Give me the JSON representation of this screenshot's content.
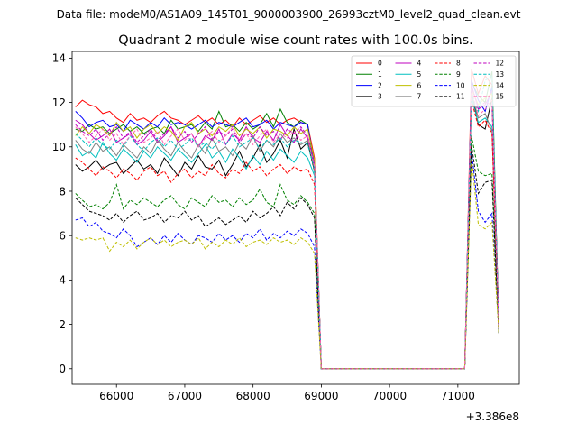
{
  "chart_data": {
    "type": "line",
    "suptitle": "Data file: modeM0/AS1A09_145T01_9000003900_26993cztM0_level2_quad_clean.evt",
    "title": "Quadrant 2 module wise count rates with 100.0s bins.",
    "xlabel": "",
    "ylabel": "",
    "x_offset_label": "+3.386e8",
    "xlim": [
      65350,
      71900
    ],
    "ylim": [
      -0.7,
      14.3
    ],
    "x_ticks": [
      66000,
      67000,
      68000,
      69000,
      70000,
      71000
    ],
    "x_tick_labels": [
      "66000",
      "67000",
      "68000",
      "69000",
      "70000",
      "71000"
    ],
    "y_ticks": [
      0,
      2,
      4,
      6,
      8,
      10,
      12,
      14
    ],
    "y_tick_labels": [
      "0",
      "2",
      "4",
      "6",
      "8",
      "10",
      "12",
      "14"
    ],
    "grid": false,
    "legend_position": "top-right",
    "legend_columns": 4,
    "bins": {
      "first_x": 65400,
      "step": 100,
      "gap_x": [
        69000,
        69100,
        69200,
        69300,
        69400,
        69500,
        69600,
        69700,
        69800,
        69900,
        70000,
        70100,
        70200,
        70300,
        70400,
        70500,
        70600,
        70700,
        70800,
        70900,
        71000,
        71100
      ],
      "last_x": [
        71200,
        71300,
        71400,
        71500,
        71600
      ]
    },
    "series": [
      {
        "name": "0",
        "color": "#ff0000",
        "dash": "solid",
        "pre_mean": 11.6,
        "values": [
          11.8,
          12.1,
          11.9,
          11.8,
          11.5,
          11.6,
          11.3,
          11.1,
          11.5,
          11.2,
          11.3,
          11.1,
          11.4,
          11.6,
          11.3,
          11.2,
          11.0,
          11.2,
          11.4,
          11.1,
          11.3,
          11.0,
          11.2,
          10.9,
          11.3,
          11.0,
          11.2,
          11.4,
          11.1,
          11.3,
          11.0,
          11.2,
          11.3,
          11.1,
          11.0,
          9.5
        ],
        "tail": [
          13.5,
          12.4,
          13.2,
          12.8,
          2.1
        ]
      },
      {
        "name": "1",
        "color": "#008000",
        "dash": "solid",
        "pre_mean": 10.9,
        "values": [
          10.8,
          10.7,
          11.0,
          10.8,
          10.9,
          10.6,
          10.8,
          11.0,
          10.7,
          10.9,
          10.6,
          10.8,
          10.9,
          10.6,
          11.2,
          10.8,
          10.9,
          11.0,
          10.7,
          11.1,
          10.8,
          11.6,
          10.9,
          11.0,
          10.7,
          11.1,
          10.8,
          11.0,
          11.5,
          10.9,
          11.7,
          11.1,
          10.9,
          11.2,
          11.0,
          9.0
        ],
        "tail": [
          12.9,
          12.3,
          12.0,
          13.4,
          2.0
        ]
      },
      {
        "name": "2",
        "color": "#0000ff",
        "dash": "solid",
        "pre_mean": 11.2,
        "values": [
          11.6,
          11.3,
          10.9,
          11.1,
          11.2,
          10.9,
          11.0,
          10.7,
          11.2,
          11.0,
          10.8,
          11.1,
          10.9,
          11.3,
          11.0,
          11.1,
          11.0,
          10.8,
          11.0,
          11.2,
          10.9,
          11.1,
          11.0,
          10.9,
          11.1,
          11.3,
          10.9,
          11.0,
          11.2,
          10.8,
          11.1,
          11.0,
          10.9,
          11.1,
          11.0,
          9.2
        ],
        "tail": [
          13.0,
          12.1,
          11.6,
          12.7,
          1.9
        ]
      },
      {
        "name": "3",
        "color": "#000000",
        "dash": "solid",
        "pre_mean": 9.3,
        "values": [
          9.2,
          8.9,
          9.1,
          9.4,
          9.0,
          9.2,
          9.3,
          8.8,
          9.1,
          9.4,
          9.0,
          9.2,
          8.8,
          9.5,
          9.1,
          8.7,
          9.3,
          9.0,
          9.6,
          9.1,
          9.0,
          9.4,
          8.7,
          9.2,
          9.8,
          9.1,
          9.5,
          10.1,
          9.3,
          9.7,
          10.3,
          9.5,
          10.8,
          9.9,
          10.2,
          8.9
        ],
        "tail": [
          12.5,
          11.0,
          10.8,
          12.2,
          1.9
        ]
      },
      {
        "name": "4",
        "color": "#bf00bf",
        "dash": "solid",
        "pre_mean": 10.5,
        "values": [
          11.2,
          11.0,
          10.6,
          10.3,
          10.5,
          10.8,
          10.2,
          10.4,
          10.6,
          10.1,
          10.3,
          10.7,
          10.2,
          10.5,
          10.9,
          10.2,
          10.4,
          10.6,
          10.0,
          10.5,
          10.3,
          10.8,
          10.1,
          10.6,
          10.3,
          10.9,
          10.4,
          10.2,
          10.7,
          10.3,
          11.0,
          10.5,
          10.2,
          10.8,
          10.4,
          9.1
        ],
        "tail": [
          12.8,
          11.7,
          11.9,
          12.5,
          1.9
        ]
      },
      {
        "name": "5",
        "color": "#00bfbf",
        "dash": "solid",
        "pre_mean": 9.7,
        "values": [
          10.1,
          9.6,
          9.8,
          9.5,
          10.2,
          9.7,
          9.4,
          9.9,
          9.6,
          9.3,
          9.8,
          9.5,
          10.0,
          9.7,
          9.4,
          9.9,
          9.6,
          9.3,
          9.7,
          10.1,
          9.5,
          9.8,
          9.3,
          9.9,
          9.5,
          9.0,
          9.6,
          9.2,
          9.8,
          9.4,
          9.9,
          9.6,
          9.3,
          9.8,
          9.5,
          8.7
        ],
        "tail": [
          12.2,
          11.1,
          11.3,
          10.9,
          1.8
        ]
      },
      {
        "name": "6",
        "color": "#bfbf00",
        "dash": "solid",
        "pre_mean": 10.8,
        "values": [
          10.5,
          10.9,
          10.6,
          11.0,
          10.8,
          10.5,
          11.1,
          10.7,
          10.9,
          10.4,
          10.8,
          11.0,
          10.6,
          10.9,
          10.7,
          10.3,
          10.9,
          11.1,
          10.6,
          10.8,
          10.5,
          10.9,
          10.7,
          11.0,
          10.5,
          10.8,
          10.6,
          10.9,
          10.4,
          10.8,
          10.7,
          10.5,
          10.9,
          10.6,
          10.8,
          9.4
        ],
        "tail": [
          12.6,
          11.9,
          12.2,
          12.4,
          1.8
        ]
      },
      {
        "name": "7",
        "color": "#808080",
        "dash": "solid",
        "pre_mean": 10.0,
        "values": [
          10.3,
          9.9,
          9.7,
          10.2,
          9.8,
          10.0,
          9.6,
          10.1,
          9.8,
          9.5,
          10.0,
          9.7,
          10.3,
          9.9,
          9.6,
          10.2,
          9.8,
          9.5,
          10.1,
          9.7,
          10.4,
          9.8,
          10.0,
          9.6,
          10.2,
          9.9,
          10.5,
          9.8,
          10.3,
          10.0,
          10.6,
          10.2,
          10.4,
          10.1,
          10.3,
          9.0
        ],
        "tail": [
          12.4,
          11.3,
          11.5,
          10.7,
          1.7
        ]
      },
      {
        "name": "8",
        "color": "#ff0000",
        "dash": "dashed",
        "pre_mean": 8.9,
        "values": [
          9.5,
          9.3,
          9.0,
          8.7,
          9.1,
          8.9,
          8.6,
          9.0,
          8.8,
          8.5,
          8.9,
          9.1,
          8.7,
          8.9,
          8.4,
          8.8,
          9.0,
          8.6,
          8.9,
          8.7,
          9.2,
          8.8,
          8.6,
          9.0,
          8.8,
          9.3,
          8.9,
          9.1,
          8.7,
          9.0,
          9.2,
          8.8,
          9.1,
          8.9,
          9.0,
          8.3
        ],
        "tail": [
          12.1,
          10.9,
          11.2,
          10.6,
          1.7
        ]
      },
      {
        "name": "9",
        "color": "#008000",
        "dash": "dashed",
        "pre_mean": 7.5,
        "values": [
          7.9,
          7.6,
          7.3,
          7.4,
          7.2,
          7.5,
          8.3,
          7.2,
          7.6,
          7.4,
          7.7,
          7.5,
          7.3,
          7.6,
          7.8,
          7.4,
          7.2,
          7.7,
          7.5,
          7.3,
          7.8,
          7.5,
          7.6,
          7.3,
          7.7,
          7.4,
          7.6,
          8.1,
          7.5,
          7.3,
          8.3,
          7.6,
          7.4,
          7.8,
          7.5,
          7.0
        ],
        "tail": [
          10.5,
          8.9,
          8.7,
          8.8,
          1.7
        ]
      },
      {
        "name": "10",
        "color": "#0000ff",
        "dash": "dashed",
        "pre_mean": 6.0,
        "values": [
          6.7,
          6.8,
          6.4,
          6.6,
          6.2,
          6.1,
          5.9,
          6.3,
          6.0,
          5.5,
          5.7,
          5.9,
          5.6,
          6.0,
          5.7,
          6.1,
          5.8,
          5.6,
          6.0,
          5.9,
          5.7,
          6.1,
          5.8,
          6.0,
          5.7,
          6.1,
          5.9,
          6.3,
          5.8,
          6.1,
          5.9,
          6.2,
          6.0,
          6.3,
          6.1,
          5.5
        ],
        "tail": [
          9.8,
          7.1,
          6.6,
          7.0,
          1.6
        ]
      },
      {
        "name": "11",
        "color": "#000000",
        "dash": "dashed",
        "pre_mean": 6.9,
        "values": [
          7.7,
          7.4,
          7.1,
          7.0,
          6.9,
          6.7,
          7.0,
          6.6,
          6.9,
          7.1,
          6.7,
          6.8,
          7.0,
          6.6,
          6.9,
          6.8,
          7.1,
          6.7,
          6.9,
          6.4,
          6.6,
          6.8,
          6.5,
          6.7,
          6.9,
          6.6,
          7.1,
          6.8,
          7.0,
          7.3,
          6.9,
          7.5,
          7.2,
          7.7,
          7.4,
          6.8
        ],
        "tail": [
          10.1,
          7.9,
          8.4,
          8.5,
          1.6
        ]
      },
      {
        "name": "12",
        "color": "#bf00bf",
        "dash": "dashed",
        "pre_mean": 10.5,
        "values": [
          11.0,
          10.7,
          10.5,
          10.8,
          10.3,
          10.6,
          10.9,
          10.4,
          10.7,
          10.2,
          10.5,
          10.8,
          10.3,
          10.6,
          10.9,
          10.4,
          10.7,
          10.2,
          10.6,
          10.9,
          10.3,
          10.7,
          10.5,
          10.8,
          10.2,
          10.6,
          10.4,
          10.9,
          10.5,
          10.7,
          10.3,
          10.8,
          10.6,
          10.9,
          10.5,
          9.2
        ],
        "tail": [
          12.7,
          11.8,
          12.0,
          11.9,
          1.9
        ]
      },
      {
        "name": "13",
        "color": "#00bfbf",
        "dash": "dashed",
        "pre_mean": 10.2,
        "values": [
          10.6,
          10.3,
          10.0,
          10.4,
          10.1,
          9.9,
          10.3,
          10.0,
          10.5,
          10.1,
          9.8,
          10.2,
          10.4,
          10.0,
          10.3,
          9.9,
          10.1,
          10.4,
          10.0,
          10.2,
          9.9,
          10.3,
          10.1,
          10.5,
          10.0,
          10.2,
          10.4,
          9.9,
          10.3,
          10.1,
          10.4,
          10.0,
          10.3,
          10.2,
          10.1,
          9.0
        ],
        "tail": [
          12.3,
          11.6,
          13.0,
          13.2,
          1.8
        ]
      },
      {
        "name": "14",
        "color": "#bfbf00",
        "dash": "dashed",
        "pre_mean": 5.7,
        "values": [
          5.9,
          5.8,
          5.9,
          5.8,
          5.9,
          5.3,
          5.7,
          5.5,
          5.8,
          5.4,
          5.7,
          5.9,
          5.6,
          5.8,
          5.5,
          5.7,
          5.8,
          5.6,
          5.9,
          5.4,
          5.7,
          5.5,
          5.8,
          5.6,
          5.9,
          5.5,
          5.7,
          5.8,
          5.6,
          5.9,
          5.7,
          5.8,
          5.6,
          5.9,
          5.7,
          5.2
        ],
        "tail": [
          9.5,
          6.5,
          6.3,
          6.6,
          1.6
        ]
      },
      {
        "name": "15",
        "color": "#ff69b4",
        "dash": "dashed",
        "pre_mean": 10.4,
        "values": [
          10.9,
          10.6,
          10.2,
          10.5,
          10.8,
          10.3,
          10.6,
          10.1,
          10.5,
          10.8,
          10.2,
          10.4,
          10.7,
          10.1,
          10.5,
          10.8,
          10.3,
          10.6,
          10.0,
          10.4,
          10.7,
          10.2,
          10.5,
          10.9,
          10.3,
          10.6,
          10.1,
          10.5,
          10.8,
          10.2,
          10.6,
          10.4,
          10.7,
          10.3,
          10.5,
          9.1
        ],
        "tail": [
          12.6,
          11.4,
          11.7,
          12.1,
          1.8
        ]
      }
    ]
  }
}
